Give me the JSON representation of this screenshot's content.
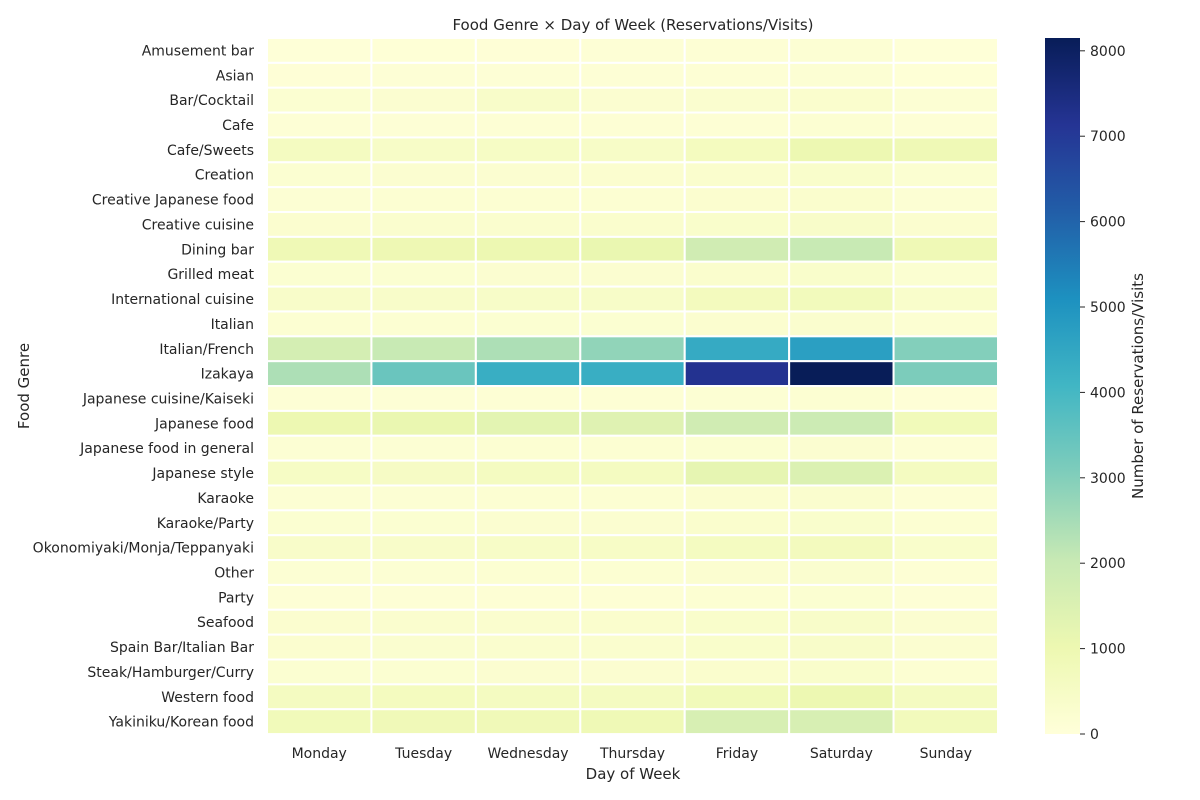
{
  "chart_data": {
    "type": "heatmap",
    "title": "Food Genre × Day of Week (Reservations/Visits)",
    "xlabel": "Day of Week",
    "ylabel": "Food Genre",
    "colorbar_label": "Number of Reservations/Visits",
    "colormap": "YlGnBu",
    "color_range": [
      0,
      8150
    ],
    "colorbar_ticks": [
      0,
      1000,
      2000,
      3000,
      4000,
      5000,
      6000,
      7000,
      8000
    ],
    "grid_line_color": "#ffffff",
    "columns": [
      "Monday",
      "Tuesday",
      "Wednesday",
      "Thursday",
      "Friday",
      "Saturday",
      "Sunday"
    ],
    "rows": [
      "Amusement bar",
      "Asian",
      "Bar/Cocktail",
      "Cafe",
      "Cafe/Sweets",
      "Creation",
      "Creative Japanese food",
      "Creative cuisine",
      "Dining bar",
      "Grilled meat",
      "International cuisine",
      "Italian",
      "Italian/French",
      "Izakaya",
      "Japanese cuisine/Kaiseki",
      "Japanese food",
      "Japanese food in general",
      "Japanese style",
      "Karaoke",
      "Karaoke/Party",
      "Okonomiyaki/Monja/Teppanyaki",
      "Other",
      "Party",
      "Seafood",
      "Spain Bar/Italian Bar",
      "Steak/Hamburger/Curry",
      "Western food",
      "Yakiniku/Korean food"
    ],
    "values": [
      [
        60,
        70,
        80,
        90,
        120,
        150,
        60
      ],
      [
        80,
        90,
        90,
        100,
        130,
        160,
        70
      ],
      [
        200,
        220,
        400,
        230,
        260,
        300,
        150
      ],
      [
        100,
        110,
        120,
        120,
        140,
        180,
        110
      ],
      [
        600,
        450,
        500,
        450,
        650,
        1000,
        900
      ],
      [
        200,
        220,
        230,
        250,
        300,
        350,
        200
      ],
      [
        150,
        170,
        180,
        190,
        250,
        300,
        150
      ],
      [
        250,
        270,
        280,
        300,
        350,
        400,
        250
      ],
      [
        900,
        950,
        1000,
        1100,
        1800,
        2000,
        900
      ],
      [
        200,
        210,
        220,
        230,
        300,
        350,
        200
      ],
      [
        400,
        420,
        430,
        440,
        700,
        750,
        350
      ],
      [
        180,
        190,
        200,
        210,
        250,
        280,
        170
      ],
      [
        1700,
        2000,
        2400,
        2800,
        4400,
        4700,
        3000
      ],
      [
        2400,
        3400,
        4300,
        4300,
        7200,
        8150,
        3100
      ],
      [
        100,
        110,
        115,
        120,
        150,
        170,
        80
      ],
      [
        1000,
        1100,
        1300,
        1400,
        1800,
        1900,
        800
      ],
      [
        150,
        160,
        170,
        180,
        200,
        230,
        140
      ],
      [
        500,
        520,
        600,
        600,
        1200,
        1500,
        600
      ],
      [
        150,
        160,
        170,
        180,
        250,
        280,
        140
      ],
      [
        200,
        210,
        220,
        230,
        300,
        320,
        180
      ],
      [
        400,
        420,
        450,
        480,
        600,
        700,
        350
      ],
      [
        150,
        160,
        170,
        180,
        220,
        260,
        140
      ],
      [
        100,
        110,
        120,
        130,
        180,
        200,
        90
      ],
      [
        250,
        270,
        280,
        300,
        350,
        400,
        220
      ],
      [
        250,
        260,
        270,
        280,
        350,
        400,
        220
      ],
      [
        200,
        210,
        220,
        230,
        300,
        350,
        180
      ],
      [
        600,
        650,
        600,
        600,
        800,
        1000,
        600
      ],
      [
        800,
        850,
        850,
        900,
        1600,
        1600,
        750
      ]
    ]
  }
}
